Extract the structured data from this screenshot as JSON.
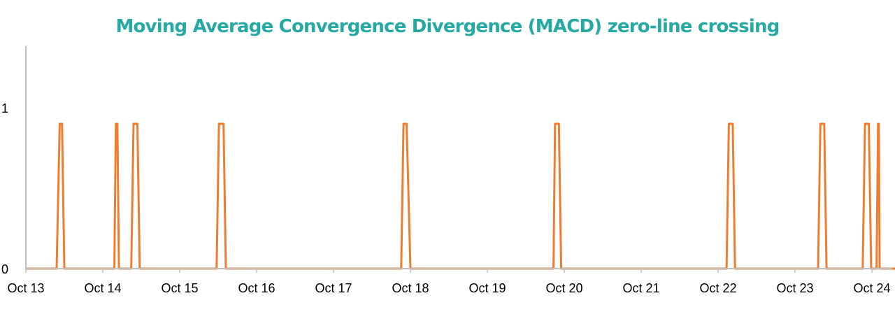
{
  "colors": {
    "title": "#26a9a3",
    "series": "#ed7d31",
    "axis": "#bfbfbf"
  },
  "chart_data": {
    "type": "line",
    "title": "Moving Average Convergence Divergence (MACD) zero-line crossing",
    "xlabel": "",
    "ylabel": "",
    "x_ticks": [
      "Oct 13",
      "Oct 14",
      "Oct 15",
      "Oct 16",
      "Oct 17",
      "Oct 18",
      "Oct 19",
      "Oct 20",
      "Oct 21",
      "Oct 22",
      "Oct 23",
      "Oct 24"
    ],
    "y_ticks": [
      "0",
      "1"
    ],
    "xlim": [
      13,
      24.3
    ],
    "ylim": [
      0,
      1.4
    ],
    "grid": false,
    "legend": "none",
    "pulse_height": 0.9,
    "series": [
      {
        "pulses": [
          [
            13.4,
            13.44,
            13.47,
            13.5
          ],
          [
            14.15,
            14.17,
            14.19,
            14.21
          ],
          [
            14.37,
            14.4,
            14.45,
            14.48
          ],
          [
            15.48,
            15.51,
            15.57,
            15.6
          ],
          [
            17.88,
            17.91,
            17.95,
            18.0
          ],
          [
            19.86,
            19.88,
            19.93,
            19.96
          ],
          [
            22.11,
            22.14,
            22.19,
            22.22
          ],
          [
            23.3,
            23.33,
            23.38,
            23.41
          ],
          [
            23.88,
            23.91,
            23.96,
            23.99
          ],
          [
            24.06,
            24.08,
            24.09,
            24.1
          ]
        ]
      }
    ]
  }
}
